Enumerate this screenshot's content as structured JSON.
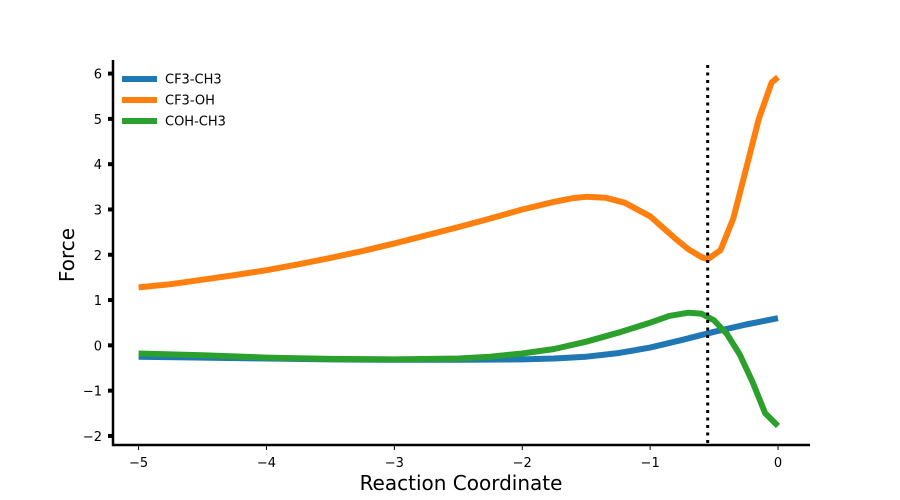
{
  "chart_data": {
    "type": "line",
    "xlabel": "Reaction Coordinate",
    "ylabel": "Force",
    "xlim": [
      -5.2,
      0.25
    ],
    "ylim": [
      -2.2,
      6.3
    ],
    "xticks": [
      -5,
      -4,
      -3,
      -2,
      -1,
      0
    ],
    "xtick_labels": [
      "−5",
      "−4",
      "−3",
      "−2",
      "−1",
      "0"
    ],
    "yticks": [
      -2,
      -1,
      0,
      1,
      2,
      3,
      4,
      5,
      6
    ],
    "ytick_labels": [
      "−2",
      "−1",
      "0",
      "1",
      "2",
      "3",
      "4",
      "5",
      "6"
    ],
    "grid": false,
    "legend_position": "top-left",
    "vline": {
      "x": -0.55,
      "style": "dotted",
      "color": "#000000"
    },
    "series": [
      {
        "name": "CF3-CH3",
        "color": "#1f77b4",
        "x": [
          -5.0,
          -4.5,
          -4.0,
          -3.5,
          -3.0,
          -2.5,
          -2.0,
          -1.75,
          -1.5,
          -1.25,
          -1.0,
          -0.75,
          -0.5,
          -0.25,
          0.0
        ],
        "y": [
          -0.25,
          -0.27,
          -0.29,
          -0.31,
          -0.32,
          -0.32,
          -0.31,
          -0.29,
          -0.25,
          -0.17,
          -0.05,
          0.12,
          0.3,
          0.46,
          0.6
        ]
      },
      {
        "name": "CF3-OH",
        "color": "#ff7f0e",
        "x": [
          -5.0,
          -4.75,
          -4.5,
          -4.25,
          -4.0,
          -3.75,
          -3.5,
          -3.25,
          -3.0,
          -2.75,
          -2.5,
          -2.25,
          -2.0,
          -1.75,
          -1.6,
          -1.5,
          -1.35,
          -1.2,
          -1.1,
          -1.0,
          -0.9,
          -0.8,
          -0.7,
          -0.6,
          -0.55,
          -0.45,
          -0.35,
          -0.25,
          -0.15,
          -0.05,
          0.0
        ],
        "y": [
          1.28,
          1.35,
          1.45,
          1.55,
          1.66,
          1.79,
          1.93,
          2.08,
          2.25,
          2.43,
          2.61,
          2.8,
          3.0,
          3.17,
          3.25,
          3.28,
          3.26,
          3.15,
          3.0,
          2.85,
          2.6,
          2.35,
          2.12,
          1.95,
          1.9,
          2.1,
          2.8,
          3.9,
          5.0,
          5.8,
          5.92
        ]
      },
      {
        "name": "COH-CH3",
        "color": "#2ca02c",
        "x": [
          -5.0,
          -4.5,
          -4.0,
          -3.5,
          -3.0,
          -2.5,
          -2.25,
          -2.0,
          -1.75,
          -1.5,
          -1.25,
          -1.0,
          -0.85,
          -0.7,
          -0.6,
          -0.5,
          -0.4,
          -0.3,
          -0.2,
          -0.1,
          0.0
        ],
        "y": [
          -0.18,
          -0.22,
          -0.27,
          -0.3,
          -0.31,
          -0.29,
          -0.25,
          -0.18,
          -0.08,
          0.08,
          0.28,
          0.5,
          0.65,
          0.72,
          0.7,
          0.55,
          0.25,
          -0.2,
          -0.8,
          -1.5,
          -1.78
        ]
      }
    ]
  }
}
